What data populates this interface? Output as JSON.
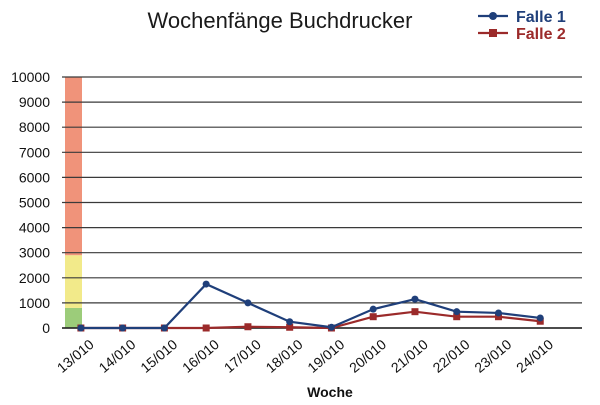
{
  "chart_data": {
    "type": "line",
    "title": "Wochenfänge Buchdrucker",
    "xlabel": "Woche",
    "ylabel": "",
    "ylim": [
      0,
      10000
    ],
    "yticks": [
      0,
      1000,
      2000,
      3000,
      4000,
      5000,
      6000,
      7000,
      8000,
      9000,
      10000
    ],
    "categories": [
      "13/010",
      "14/010",
      "15/010",
      "16/010",
      "17/010",
      "18/010",
      "19/010",
      "20/010",
      "21/010",
      "22/010",
      "23/010",
      "24/010"
    ],
    "grid": true,
    "legend_position": "top-right",
    "threshold_bands": [
      {
        "from": 0,
        "to": 800,
        "color": "#9ccc7a"
      },
      {
        "from": 800,
        "to": 2900,
        "color": "#f2ea8a"
      },
      {
        "from": 2900,
        "to": 10000,
        "color": "#f0937a"
      }
    ],
    "series": [
      {
        "name": "Falle 1",
        "color": "#1f3f7a",
        "marker": "circle",
        "values": [
          0,
          0,
          0,
          1750,
          1000,
          250,
          30,
          750,
          1150,
          650,
          600,
          400
        ]
      },
      {
        "name": "Falle 2",
        "color": "#9b2a2a",
        "marker": "square",
        "values": [
          0,
          0,
          0,
          0,
          50,
          30,
          0,
          450,
          650,
          450,
          450,
          270
        ]
      }
    ]
  }
}
